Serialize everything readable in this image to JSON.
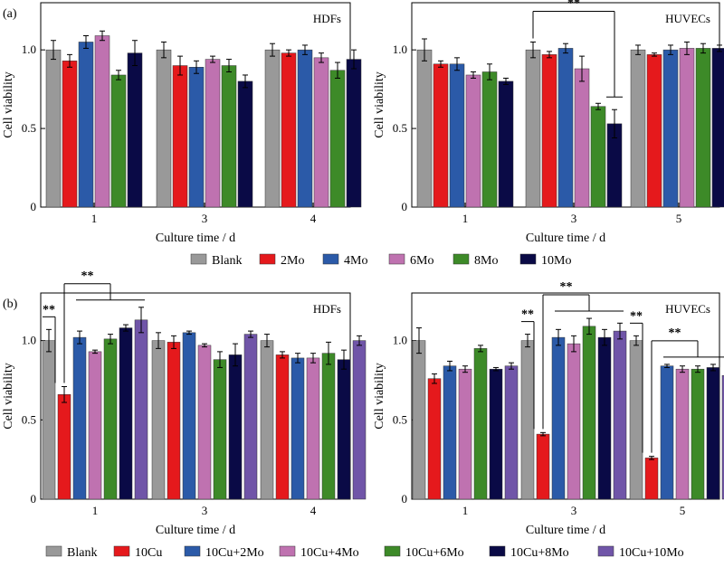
{
  "chart_data": [
    {
      "type": "bar",
      "panel_label": "(a)",
      "title": "HDFs",
      "xlabel": "Culture time / d",
      "ylabel": "Cell viability",
      "ylim": [
        0,
        1.3
      ],
      "yticks": [
        0,
        0.5,
        1.0
      ],
      "ytick_labels": [
        "0",
        "0.5",
        "1.0"
      ],
      "categories": [
        "1",
        "3",
        "4"
      ],
      "series": [
        {
          "name": "Blank",
          "color": "#999999",
          "values": [
            1.0,
            1.0,
            1.0
          ],
          "errors": [
            0.06,
            0.05,
            0.04
          ]
        },
        {
          "name": "2Mo",
          "color": "#e5191c",
          "values": [
            0.93,
            0.9,
            0.98
          ],
          "errors": [
            0.04,
            0.06,
            0.02
          ]
        },
        {
          "name": "4Mo",
          "color": "#2b5aa8",
          "values": [
            1.05,
            0.89,
            1.0
          ],
          "errors": [
            0.04,
            0.04,
            0.03
          ]
        },
        {
          "name": "6Mo",
          "color": "#bf72b0",
          "values": [
            1.09,
            0.94,
            0.95
          ],
          "errors": [
            0.03,
            0.02,
            0.03
          ]
        },
        {
          "name": "8Mo",
          "color": "#3d8a28",
          "values": [
            0.84,
            0.9,
            0.87
          ],
          "errors": [
            0.03,
            0.04,
            0.05
          ]
        },
        {
          "name": "10Mo",
          "color": "#0a0a46",
          "values": [
            0.98,
            0.8,
            0.94
          ],
          "errors": [
            0.08,
            0.04,
            0.06
          ]
        }
      ],
      "significance": []
    },
    {
      "type": "bar",
      "panel_label": "",
      "title": "HUVECs",
      "xlabel": "Culture time / d",
      "ylabel": "Cell viability",
      "ylim": [
        0,
        1.3
      ],
      "yticks": [
        0,
        0.5,
        1.0
      ],
      "ytick_labels": [
        "0",
        "0.5",
        "1.0"
      ],
      "categories": [
        "1",
        "3",
        "5"
      ],
      "series": [
        {
          "name": "Blank",
          "color": "#999999",
          "values": [
            1.0,
            1.0,
            1.0
          ],
          "errors": [
            0.07,
            0.05,
            0.03
          ]
        },
        {
          "name": "2Mo",
          "color": "#e5191c",
          "values": [
            0.91,
            0.97,
            0.97
          ],
          "errors": [
            0.02,
            0.02,
            0.01
          ]
        },
        {
          "name": "4Mo",
          "color": "#2b5aa8",
          "values": [
            0.91,
            1.01,
            1.0
          ],
          "errors": [
            0.04,
            0.03,
            0.03
          ]
        },
        {
          "name": "6Mo",
          "color": "#bf72b0",
          "values": [
            0.84,
            0.88,
            1.01
          ],
          "errors": [
            0.02,
            0.08,
            0.04
          ]
        },
        {
          "name": "8Mo",
          "color": "#3d8a28",
          "values": [
            0.86,
            0.64,
            1.01
          ],
          "errors": [
            0.05,
            0.02,
            0.03
          ]
        },
        {
          "name": "10Mo",
          "color": "#0a0a46",
          "values": [
            0.8,
            0.53,
            1.01
          ],
          "errors": [
            0.02,
            0.09,
            0.02
          ]
        }
      ],
      "significance": [
        {
          "label": "**",
          "category": 1,
          "from_series": 0,
          "to_series": 5
        }
      ]
    },
    {
      "type": "bar",
      "panel_label": "(b)",
      "title": "HDFs",
      "xlabel": "Culture time / d",
      "ylabel": "Cell viability",
      "ylim": [
        0,
        1.3
      ],
      "yticks": [
        0,
        0.5,
        1.0
      ],
      "ytick_labels": [
        "0",
        "0.5",
        "1.0"
      ],
      "categories": [
        "1",
        "3",
        "4"
      ],
      "series": [
        {
          "name": "Blank",
          "color": "#999999",
          "values": [
            1.0,
            1.0,
            1.0
          ],
          "errors": [
            0.07,
            0.05,
            0.04
          ]
        },
        {
          "name": "10Cu",
          "color": "#e5191c",
          "values": [
            0.66,
            0.99,
            0.91
          ],
          "errors": [
            0.05,
            0.04,
            0.02
          ]
        },
        {
          "name": "10Cu+2Mo",
          "color": "#2b5aa8",
          "values": [
            1.02,
            1.05,
            0.89
          ],
          "errors": [
            0.04,
            0.01,
            0.03
          ]
        },
        {
          "name": "10Cu+4Mo",
          "color": "#bf72b0",
          "values": [
            0.93,
            0.97,
            0.89
          ],
          "errors": [
            0.01,
            0.01,
            0.03
          ]
        },
        {
          "name": "10Cu+6Mo",
          "color": "#3d8a28",
          "values": [
            1.01,
            0.88,
            0.92
          ],
          "errors": [
            0.03,
            0.05,
            0.07
          ]
        },
        {
          "name": "10Cu+8Mo",
          "color": "#0a0a46",
          "values": [
            1.08,
            0.91,
            0.88
          ],
          "errors": [
            0.02,
            0.07,
            0.06
          ]
        },
        {
          "name": "10Cu+10Mo",
          "color": "#7055a8",
          "values": [
            1.13,
            1.04,
            1.0
          ],
          "errors": [
            0.08,
            0.02,
            0.03
          ]
        }
      ],
      "significance": [
        {
          "label": "**",
          "category": 0,
          "from_series": 0,
          "to_series": 1
        },
        {
          "label": "**",
          "category": 0,
          "from_series": 1,
          "to_series_range": [
            2,
            6
          ]
        }
      ]
    },
    {
      "type": "bar",
      "panel_label": "",
      "title": "HUVECs",
      "xlabel": "Culture time / d",
      "ylabel": "Cell viability",
      "ylim": [
        0,
        1.3
      ],
      "yticks": [
        0,
        0.5,
        1.0
      ],
      "ytick_labels": [
        "0",
        "0.5",
        "1.0"
      ],
      "categories": [
        "1",
        "3",
        "5"
      ],
      "series": [
        {
          "name": "Blank",
          "color": "#999999",
          "values": [
            1.0,
            1.0,
            1.0
          ],
          "errors": [
            0.08,
            0.04,
            0.03
          ]
        },
        {
          "name": "10Cu",
          "color": "#e5191c",
          "values": [
            0.76,
            0.41,
            0.26
          ],
          "errors": [
            0.03,
            0.01,
            0.01
          ]
        },
        {
          "name": "10Cu+2Mo",
          "color": "#2b5aa8",
          "values": [
            0.84,
            1.02,
            0.84
          ],
          "errors": [
            0.03,
            0.05,
            0.01
          ]
        },
        {
          "name": "10Cu+4Mo",
          "color": "#bf72b0",
          "values": [
            0.82,
            0.98,
            0.82
          ],
          "errors": [
            0.02,
            0.05,
            0.02
          ]
        },
        {
          "name": "10Cu+6Mo",
          "color": "#3d8a28",
          "values": [
            0.95,
            1.09,
            0.82
          ],
          "errors": [
            0.02,
            0.05,
            0.02
          ]
        },
        {
          "name": "10Cu+8Mo",
          "color": "#0a0a46",
          "values": [
            0.82,
            1.02,
            0.83
          ],
          "errors": [
            0.01,
            0.05,
            0.02
          ]
        },
        {
          "name": "10Cu+10Mo",
          "color": "#7055a8",
          "values": [
            0.84,
            1.06,
            0.78
          ],
          "errors": [
            0.02,
            0.05,
            0.04
          ]
        }
      ],
      "significance": [
        {
          "label": "**",
          "category": 1,
          "from_series": 0,
          "to_series": 1
        },
        {
          "label": "**",
          "category": 1,
          "from_series": 1,
          "to_series_range": [
            2,
            6
          ]
        },
        {
          "label": "**",
          "category": 2,
          "from_series": 0,
          "to_series": 1
        },
        {
          "label": "**",
          "category": 2,
          "from_series": 1,
          "to_series_range": [
            2,
            6
          ]
        }
      ]
    }
  ],
  "legend_a": [
    "Blank",
    "2Mo",
    "4Mo",
    "6Mo",
    "8Mo",
    "10Mo"
  ],
  "legend_b": [
    "Blank",
    "10Cu",
    "10Cu+2Mo",
    "10Cu+4Mo",
    "10Cu+6Mo",
    "10Cu+8Mo",
    "10Cu+10Mo"
  ]
}
